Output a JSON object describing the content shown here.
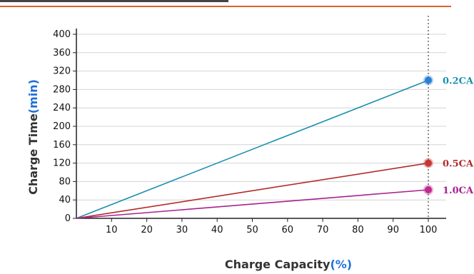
{
  "chart_data": {
    "type": "line",
    "xlabel": "Charge Capacity",
    "xlabel_unit": "(%)",
    "ylabel": "Charge Time",
    "ylabel_unit": "(min)",
    "xlim": [
      0,
      100
    ],
    "ylim": [
      0,
      400
    ],
    "x_ticks": [
      10,
      20,
      30,
      40,
      50,
      60,
      70,
      80,
      90,
      100
    ],
    "y_ticks": [
      0,
      40,
      80,
      120,
      160,
      200,
      240,
      280,
      320,
      360,
      400
    ],
    "grid": true,
    "series": [
      {
        "name": "0.2CA",
        "color": "#1a8fb0",
        "marker_color": "#2b7fd6",
        "x": [
          0,
          100
        ],
        "y": [
          0,
          300
        ]
      },
      {
        "name": "0.5CA",
        "color": "#b32a2a",
        "marker_color": "#c73535",
        "x": [
          0,
          100
        ],
        "y": [
          0,
          120
        ]
      },
      {
        "name": "1.0CA",
        "color": "#a8228f",
        "marker_color": "#c02a8f",
        "x": [
          0,
          100
        ],
        "y": [
          0,
          62
        ]
      }
    ],
    "reference_line_x": 100
  }
}
